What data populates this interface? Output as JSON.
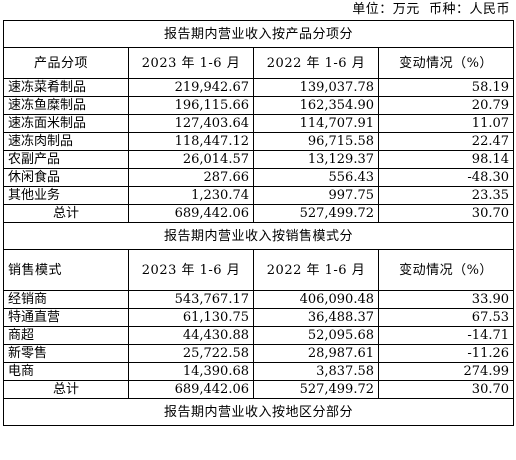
{
  "unit": {
    "unit_label": "单位：万元",
    "currency_label": "币种：人民币"
  },
  "sections": {
    "by_product": {
      "title": "报告期内营业收入按产品分项分",
      "headers": [
        "产品分项",
        "2023 年 1-6 月",
        "2022 年 1-6 月",
        "变动情况（%）"
      ],
      "rows": [
        [
          "速冻菜肴制品",
          "219,942.67",
          "139,037.78",
          "58.19"
        ],
        [
          "速冻鱼糜制品",
          "196,115.66",
          "162,354.90",
          "20.79"
        ],
        [
          "速冻面米制品",
          "127,403.64",
          "114,707.91",
          "11.07"
        ],
        [
          "速冻肉制品",
          "118,447.12",
          "96,715.58",
          "22.47"
        ],
        [
          "农副产品",
          "26,014.57",
          "13,129.37",
          "98.14"
        ],
        [
          "休闲食品",
          "287.66",
          "556.43",
          "-48.30"
        ],
        [
          "其他业务",
          "1,230.74",
          "997.75",
          "23.35"
        ]
      ],
      "total": [
        "总计",
        "689,442.06",
        "527,499.72",
        "30.70"
      ]
    },
    "by_sales": {
      "title": "报告期内营业收入按销售模式分",
      "headers": [
        "销售模式",
        "2023 年 1-6 月",
        "2022 年 1-6 月",
        "变动情况（%）"
      ],
      "rows": [
        [
          "经销商",
          "543,767.17",
          "406,090.48",
          "33.90"
        ],
        [
          "特通直营",
          "61,130.75",
          "36,488.37",
          "67.53"
        ],
        [
          "商超",
          "44,430.88",
          "52,095.68",
          "-14.71"
        ],
        [
          "新零售",
          "25,722.58",
          "28,987.61",
          "-11.26"
        ],
        [
          "电商",
          "14,390.68",
          "3,837.58",
          "274.99"
        ]
      ],
      "total": [
        "总计",
        "689,442.06",
        "527,499.72",
        "30.70"
      ]
    },
    "by_region": {
      "title": "报告期内营业收入按地区分部分"
    }
  }
}
